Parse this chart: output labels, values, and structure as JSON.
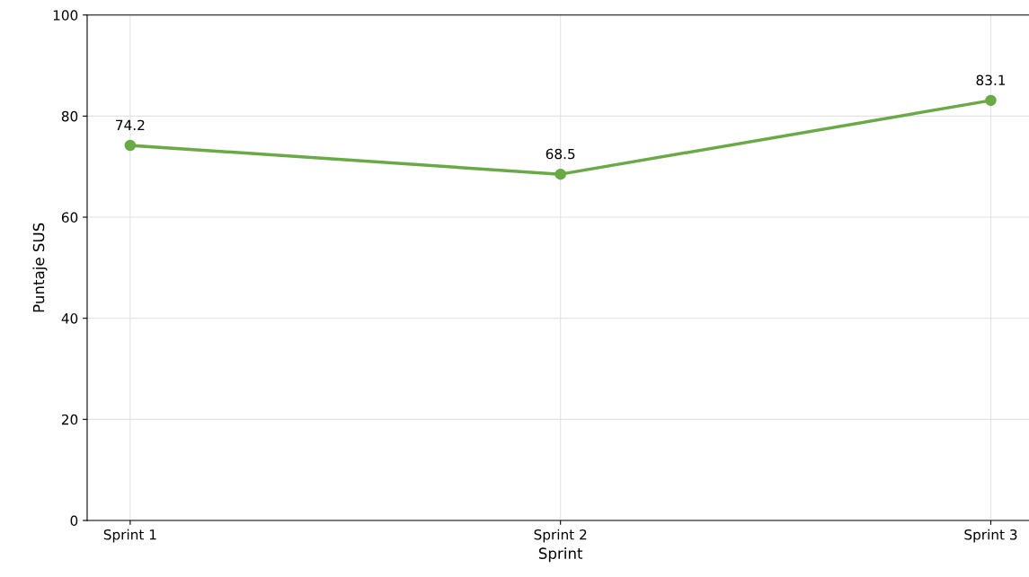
{
  "chart_data": {
    "type": "line",
    "xlabel": "Sprint",
    "ylabel": "Puntaje SUS",
    "categories": [
      "Sprint 1",
      "Sprint 2",
      "Sprint 3"
    ],
    "series": [
      {
        "color": "#6aaa44",
        "values": [
          74.2,
          68.5,
          83.1
        ]
      }
    ],
    "ylim": [
      0,
      100
    ],
    "yticks": [
      0,
      20,
      40,
      60,
      80,
      100
    ],
    "grid": true,
    "marker": "circle",
    "line_style": "solid",
    "data_labels": true
  }
}
